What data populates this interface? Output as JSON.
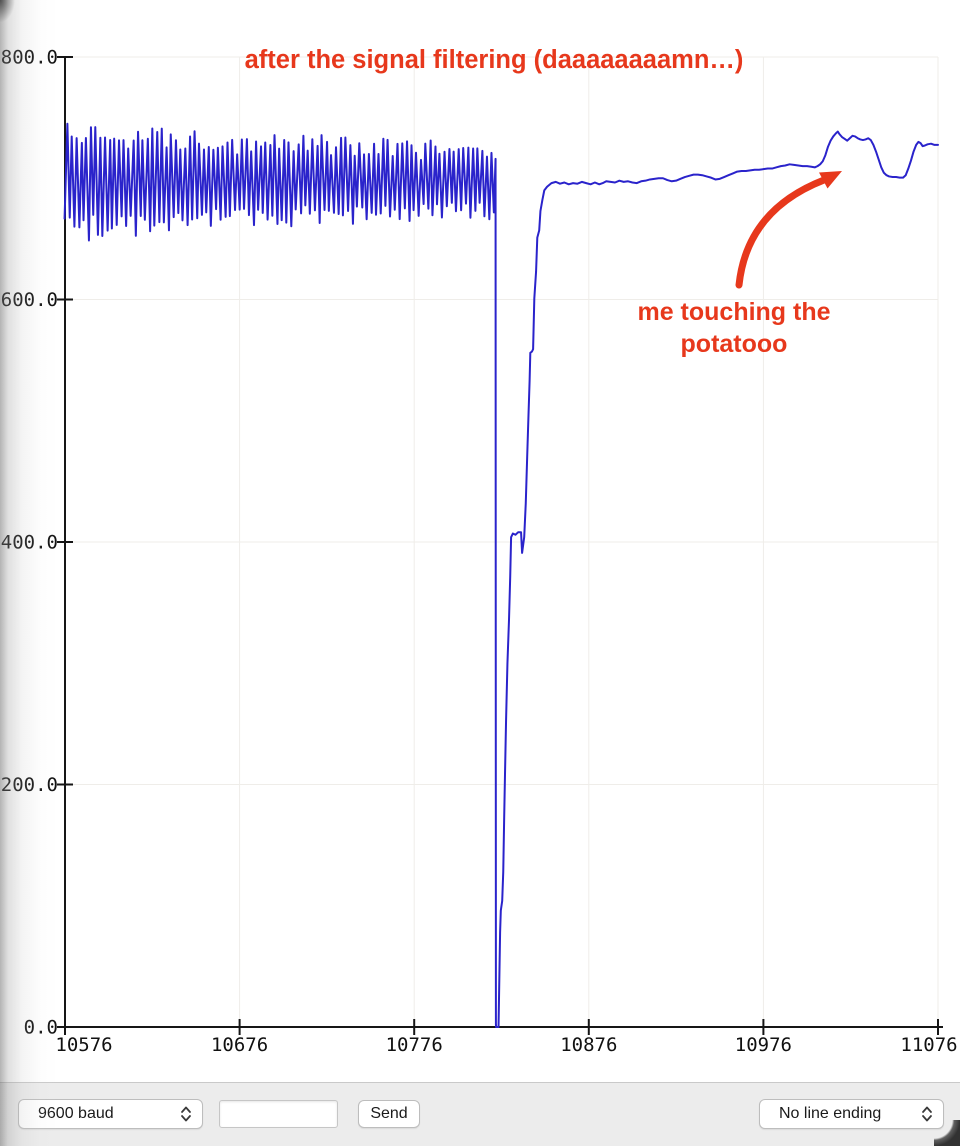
{
  "chart_data": {
    "type": "line",
    "title": "after the signal filtering (daaaaaaaamn…)",
    "annotation_color": "#e7381c",
    "line_color": "#2a23cb",
    "axis_color": "#161616",
    "grid_color": "#efede9",
    "grid": true,
    "legend_position": "none",
    "xlim": [
      10576,
      11076
    ],
    "ylim": [
      0,
      800
    ],
    "x_tick_values": [
      10576,
      10676,
      10776,
      10876,
      10976,
      11076
    ],
    "x_tick_labels": [
      "10576",
      "10676",
      "10776",
      "10876",
      "10976",
      "11076"
    ],
    "y_tick_values": [
      0,
      200,
      400,
      600,
      800
    ],
    "y_tick_labels": [
      "0.0",
      "200.0",
      "400.0",
      "600.0",
      "800.0"
    ],
    "annotations": [
      {
        "lines": [
          "me touching the",
          "potatooo"
        ],
        "arrow_tip_at_x": 11020,
        "arrow_tip_at_y": 707
      }
    ],
    "series": {
      "segments": [
        {
          "kind": "oscillation",
          "x0": 10576,
          "x1": 10822.6,
          "base0": 697,
          "base1": 698,
          "amp0": 44,
          "amp1": 27,
          "half_period": 1.35,
          "top_k": 0.65,
          "bot_k": 0.62,
          "var": 0.45,
          "base_wobble": 6,
          "x_jitter": 0.5
        },
        {
          "kind": "points",
          "pts": [
            [
              10822.6,
              716
            ],
            [
              10822.8,
              2
            ],
            [
              10822.9,
              0
            ],
            [
              10824.3,
              0
            ],
            [
              10825.2,
              78
            ],
            [
              10825.6,
              96
            ],
            [
              10826.4,
              104
            ],
            [
              10827.0,
              128
            ],
            [
              10827.5,
              170
            ],
            [
              10828.0,
              208
            ],
            [
              10828.6,
              252
            ],
            [
              10829.4,
              300
            ],
            [
              10830.3,
              336
            ],
            [
              10831.0,
              372
            ],
            [
              10831.5,
              404
            ],
            [
              10832.5,
              407
            ],
            [
              10834.0,
              406
            ],
            [
              10835.5,
              408
            ],
            [
              10837.2,
              408
            ],
            [
              10837.8,
              391
            ],
            [
              10839.0,
              404
            ],
            [
              10839.9,
              432
            ],
            [
              10840.7,
              470
            ],
            [
              10841.4,
              502
            ],
            [
              10842.1,
              533
            ],
            [
              10842.5,
              556
            ],
            [
              10843.4,
              557
            ],
            [
              10844.1,
              559
            ],
            [
              10844.8,
              601
            ],
            [
              10845.8,
              623
            ],
            [
              10846.5,
              651
            ],
            [
              10847.6,
              657
            ],
            [
              10848.3,
              673
            ],
            [
              10849.4,
              682
            ],
            [
              10850.5,
              690
            ],
            [
              10852.1,
              693
            ],
            [
              10854.6,
              696
            ],
            [
              10857.1,
              697
            ],
            [
              10859.5,
              695.5
            ],
            [
              10862.0,
              696.5
            ],
            [
              10864.5,
              695
            ],
            [
              10867.0,
              696
            ],
            [
              10869.5,
              695.5
            ],
            [
              10872.0,
              697
            ],
            [
              10874.5,
              696
            ],
            [
              10877.0,
              695
            ],
            [
              10879.5,
              696.5
            ],
            [
              10882.0,
              695
            ],
            [
              10884.0,
              696
            ],
            [
              10886.0,
              697.5
            ],
            [
              10888.5,
              697
            ],
            [
              10891.0,
              696.5
            ],
            [
              10893.5,
              698
            ],
            [
              10896.0,
              697
            ],
            [
              10898.5,
              697.5
            ],
            [
              10901.0,
              696.5
            ],
            [
              10903.5,
              696
            ],
            [
              10906.0,
              697.5
            ],
            [
              10908.5,
              698
            ],
            [
              10911.0,
              699
            ],
            [
              10913.5,
              699.5
            ],
            [
              10916.0,
              700
            ],
            [
              10918.5,
              700
            ],
            [
              10921.0,
              698.5
            ],
            [
              10923.5,
              697.5
            ],
            [
              10926.0,
              698
            ],
            [
              10928.5,
              699.5
            ],
            [
              10931.0,
              701
            ],
            [
              10933.5,
              702
            ],
            [
              10936.0,
              703
            ],
            [
              10938.5,
              703
            ],
            [
              10941.0,
              702.5
            ],
            [
              10943.5,
              701.5
            ],
            [
              10946.0,
              700.5
            ],
            [
              10948.5,
              699
            ],
            [
              10951.0,
              699.5
            ],
            [
              10953.5,
              701
            ],
            [
              10956.0,
              702.5
            ],
            [
              10958.5,
              704
            ],
            [
              10961.0,
              705.5
            ],
            [
              10963.5,
              706
            ],
            [
              10966.0,
              706
            ],
            [
              10968.5,
              706.5
            ],
            [
              10971.0,
              707
            ],
            [
              10973.5,
              707
            ],
            [
              10976.0,
              707.5
            ],
            [
              10978.5,
              708
            ],
            [
              10981.0,
              708
            ],
            [
              10983.5,
              709
            ],
            [
              10986.0,
              710
            ],
            [
              10988.5,
              710.5
            ],
            [
              10991.0,
              711.5
            ],
            [
              10993.5,
              711
            ],
            [
              10996.0,
              710.5
            ],
            [
              10998.5,
              710
            ],
            [
              11001.0,
              710
            ],
            [
              11003.5,
              709.5
            ],
            [
              11005.5,
              709
            ],
            [
              11007.0,
              710
            ],
            [
              11008.5,
              711.5
            ],
            [
              11010.0,
              714
            ],
            [
              11011.5,
              719
            ],
            [
              11013.0,
              726
            ],
            [
              11014.5,
              731
            ],
            [
              11016.0,
              734.5
            ],
            [
              11017.5,
              737
            ],
            [
              11018.6,
              738.5
            ],
            [
              11019.5,
              736.5
            ],
            [
              11021.0,
              734
            ],
            [
              11022.5,
              732.5
            ],
            [
              11024.0,
              731
            ],
            [
              11025.5,
              733
            ],
            [
              11027.0,
              735
            ],
            [
              11028.5,
              734.5
            ],
            [
              11030.0,
              733
            ],
            [
              11031.5,
              732
            ],
            [
              11033.0,
              731.5
            ],
            [
              11034.5,
              732
            ],
            [
              11036.0,
              733
            ],
            [
              11037.5,
              731.5
            ],
            [
              11039.0,
              727.5
            ],
            [
              11040.5,
              722
            ],
            [
              11042.0,
              715.5
            ],
            [
              11043.5,
              709
            ],
            [
              11045.0,
              704.5
            ],
            [
              11046.5,
              702.5
            ],
            [
              11048.0,
              701.5
            ],
            [
              11050.0,
              701
            ],
            [
              11052.0,
              701
            ],
            [
              11054.0,
              700.5
            ],
            [
              11056.0,
              700.5
            ],
            [
              11057.5,
              702.5
            ],
            [
              11059.0,
              708
            ],
            [
              11060.5,
              714.5
            ],
            [
              11062.0,
              722
            ],
            [
              11063.5,
              727.5
            ],
            [
              11064.8,
              730
            ],
            [
              11066.0,
              729
            ],
            [
              11067.2,
              726.5
            ],
            [
              11068.5,
              727
            ],
            [
              11070.0,
              728
            ],
            [
              11072.0,
              728.5
            ],
            [
              11074.0,
              727.5
            ],
            [
              11076.0,
              727.5
            ]
          ]
        }
      ]
    }
  },
  "toolbar": {
    "baud_select": {
      "value": "9600 baud"
    },
    "message_input": {
      "value": ""
    },
    "send_button": {
      "label": "Send"
    },
    "line_ending_select": {
      "value": "No line ending"
    }
  }
}
